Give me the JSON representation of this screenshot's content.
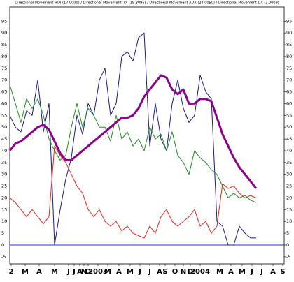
{
  "chart_data": {
    "type": "line",
    "title": "Directional Movement +DI (17.0000) / Directional Movement -DI (19.3096) / Directional Movement ADX (24.0050) / Directional Movement DX (3.0009)",
    "x": [
      0,
      2,
      4,
      6,
      8,
      10,
      12,
      14,
      16,
      18,
      20,
      22,
      24,
      26,
      28,
      30,
      32,
      34,
      36,
      38,
      40,
      42,
      44,
      46,
      48,
      50,
      52,
      54,
      56,
      58,
      60,
      62,
      64,
      66,
      68,
      70,
      72,
      74,
      76,
      78,
      80,
      82,
      84,
      86,
      88
    ],
    "xlim": [
      0,
      98
    ],
    "xticks": [
      {
        "value": 0.5,
        "label": "2"
      },
      {
        "value": 5.5,
        "label": "M"
      },
      {
        "value": 10.5,
        "label": "A"
      },
      {
        "value": 16,
        "label": "M"
      },
      {
        "value": 21,
        "label": "J"
      },
      {
        "value": 23,
        "label": "J"
      },
      {
        "value": 25,
        "label": "A"
      },
      {
        "value": 26.5,
        "label": "N"
      },
      {
        "value": 28,
        "label": "D"
      },
      {
        "value": 31.5,
        "label": "2003"
      },
      {
        "value": 35,
        "label": "M"
      },
      {
        "value": 39,
        "label": "A"
      },
      {
        "value": 43,
        "label": "M"
      },
      {
        "value": 46.5,
        "label": "J"
      },
      {
        "value": 50,
        "label": "J"
      },
      {
        "value": 53.5,
        "label": "A"
      },
      {
        "value": 55.5,
        "label": "S"
      },
      {
        "value": 59,
        "label": "O"
      },
      {
        "value": 62,
        "label": "N"
      },
      {
        "value": 64.5,
        "label": "D"
      },
      {
        "value": 68,
        "label": "2004"
      },
      {
        "value": 75,
        "label": "M"
      },
      {
        "value": 79,
        "label": "A"
      },
      {
        "value": 83,
        "label": "M"
      },
      {
        "value": 86.5,
        "label": "J"
      },
      {
        "value": 90,
        "label": "J"
      },
      {
        "value": 94,
        "label": "A"
      },
      {
        "value": 97.5,
        "label": "S"
      }
    ],
    "ylim": [
      -8,
      101
    ],
    "yticks": [
      95,
      90,
      85,
      80,
      75,
      70,
      65,
      60,
      55,
      50,
      45,
      40,
      35,
      30,
      25,
      20,
      15,
      10,
      5,
      0,
      -5
    ],
    "hline": 0,
    "hline_color": "#2233cc",
    "series": [
      {
        "color": "#1a1a8c",
        "width": 1,
        "values": [
          55,
          50,
          48,
          57,
          55,
          70,
          48,
          60,
          0,
          15,
          28,
          37,
          55,
          47,
          60,
          55,
          70,
          75,
          55,
          60,
          80,
          82,
          78,
          88,
          90,
          42,
          60,
          45,
          40,
          60,
          70,
          58,
          52,
          55,
          72,
          65,
          62,
          10,
          8,
          0,
          0,
          8,
          5,
          3,
          3
        ]
      },
      {
        "color": "#218c21",
        "width": 1,
        "values": [
          68,
          60,
          52,
          62,
          58,
          62,
          55,
          45,
          40,
          36,
          38,
          50,
          60,
          50,
          58,
          55,
          50,
          50,
          44,
          55,
          45,
          48,
          42,
          45,
          40,
          50,
          45,
          47,
          40,
          48,
          38,
          35,
          30,
          40,
          37,
          35,
          32,
          30,
          25,
          20,
          22,
          20,
          21,
          19,
          18
        ]
      },
      {
        "color": "#e8231f",
        "width": 1,
        "values": [
          20,
          18,
          15,
          12,
          15,
          12,
          9,
          12,
          42,
          38,
          35,
          30,
          25,
          22,
          15,
          12,
          15,
          10,
          8,
          10,
          6,
          8,
          5,
          4,
          3,
          8,
          5,
          12,
          15,
          10,
          8,
          10,
          12,
          15,
          8,
          10,
          5,
          8,
          26,
          24,
          25,
          22,
          20,
          21,
          20
        ]
      },
      {
        "color": "#8a008a",
        "width": 3,
        "values": [
          40,
          43,
          44,
          46,
          48,
          50,
          51,
          49,
          44,
          39,
          36,
          36,
          38,
          40,
          42,
          44,
          46,
          48,
          50,
          52,
          54,
          54,
          55,
          58,
          63,
          66,
          69,
          72,
          71,
          66,
          64,
          66,
          60,
          60,
          62,
          62,
          61,
          54,
          47,
          42,
          37,
          33,
          30,
          27,
          24
        ]
      }
    ]
  }
}
